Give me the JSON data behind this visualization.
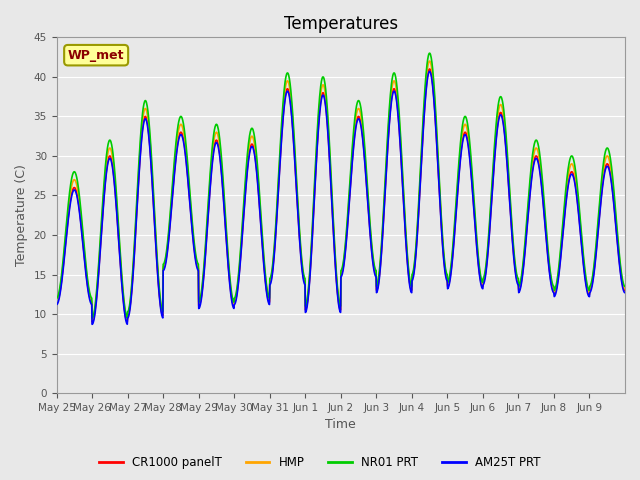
{
  "title": "Temperatures",
  "xlabel": "Time",
  "ylabel": "Temperature (C)",
  "ylim": [
    0,
    45
  ],
  "yticks": [
    0,
    5,
    10,
    15,
    20,
    25,
    30,
    35,
    40,
    45
  ],
  "x_labels": [
    "May 25",
    "May 26",
    "May 27",
    "May 28",
    "May 29",
    "May 30",
    "May 31",
    "Jun 1",
    "Jun 2",
    "Jun 3",
    "Jun 4",
    "Jun 5",
    "Jun 6",
    "Jun 7",
    "Jun 8",
    "Jun 9"
  ],
  "annotation_text": "WP_met",
  "annotation_color": "#8B0000",
  "annotation_bg": "#FFFF99",
  "series_colors": [
    "#FF0000",
    "#FFA500",
    "#00CC00",
    "#0000FF"
  ],
  "series_labels": [
    "CR1000 panelT",
    "HMP",
    "NR01 PRT",
    "AM25T PRT"
  ],
  "bg_color": "#E8E8E8",
  "low_temps": [
    11.5,
    9.0,
    9.8,
    15.8,
    11.0,
    11.5,
    14.0,
    10.5,
    15.0,
    13.0,
    14.5,
    13.5,
    14.0,
    13.0,
    12.5,
    13.0
  ],
  "high_temps": [
    26.0,
    30.0,
    35.0,
    33.0,
    32.0,
    31.5,
    38.5,
    38.0,
    35.0,
    38.5,
    41.0,
    33.0,
    35.5,
    30.0,
    28.0,
    29.0
  ]
}
